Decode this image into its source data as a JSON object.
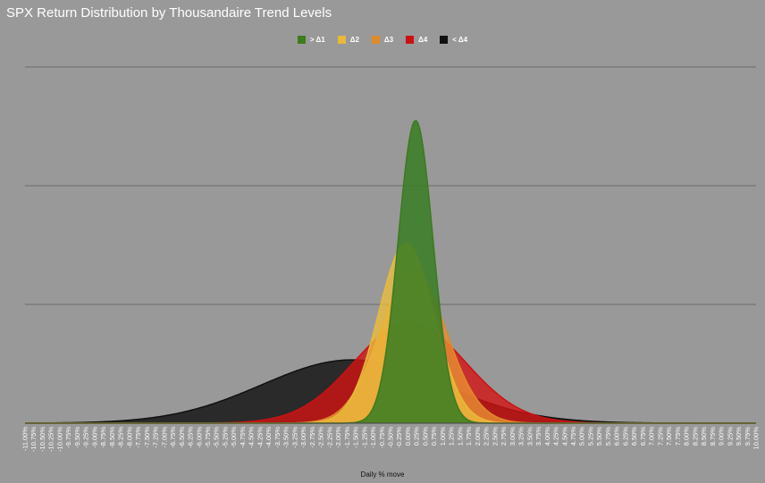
{
  "chart_data": {
    "type": "area",
    "title": "SPX Return Distribution by Thousandaire Trend Levels",
    "xlabel": "Daily % move",
    "ylabel": "",
    "legend_position": "top-center",
    "grid": true,
    "x_range": [
      -11.0,
      10.0
    ],
    "x_ticks": [
      "-11.00%",
      "-10.75%",
      "-10.50%",
      "-10.25%",
      "-10.00%",
      "-9.75%",
      "-9.50%",
      "-9.25%",
      "-9.00%",
      "-8.75%",
      "-8.50%",
      "-8.25%",
      "-8.00%",
      "-7.75%",
      "-7.50%",
      "-7.25%",
      "-7.00%",
      "-6.75%",
      "-6.50%",
      "-6.25%",
      "-6.00%",
      "-5.75%",
      "-5.50%",
      "-5.25%",
      "-5.00%",
      "-4.75%",
      "-4.50%",
      "-4.25%",
      "-4.00%",
      "-3.75%",
      "-3.50%",
      "-3.25%",
      "-3.00%",
      "-2.75%",
      "-2.50%",
      "-2.25%",
      "-2.00%",
      "-1.75%",
      "-1.50%",
      "-1.25%",
      "-1.00%",
      "-0.75%",
      "-0.50%",
      "-0.25%",
      "0.00%",
      "0.25%",
      "0.50%",
      "0.75%",
      "1.00%",
      "1.25%",
      "1.50%",
      "1.75%",
      "2.00%",
      "2.25%",
      "2.50%",
      "2.75%",
      "3.00%",
      "3.25%",
      "3.50%",
      "3.75%",
      "4.00%",
      "4.25%",
      "4.50%",
      "4.75%",
      "5.00%",
      "5.25%",
      "5.50%",
      "5.75%",
      "6.00%",
      "6.25%",
      "6.50%",
      "6.75%",
      "7.00%",
      "7.25%",
      "7.50%",
      "7.75%",
      "8.00%",
      "8.25%",
      "8.50%",
      "8.75%",
      "9.00%",
      "9.25%",
      "9.50%",
      "9.75%",
      "10.00%"
    ],
    "y_range": [
      0,
      0.9
    ],
    "gridlines": [
      0.3,
      0.6,
      0.9
    ],
    "series": [
      {
        "name": "< Δ4",
        "color": "#111111",
        "fill": "rgba(17,17,17,0.82)",
        "mean": -1.6,
        "sd": 2.6,
        "peak": 0.16
      },
      {
        "name": "Δ4",
        "color": "#cc1111",
        "fill": "rgba(210,20,20,0.80)",
        "mean": 0.05,
        "sd": 1.6,
        "peak": 0.255
      },
      {
        "name": "Δ3",
        "color": "#e08a2a",
        "fill": "rgba(230,140,50,0.82)",
        "mean": 0.15,
        "sd": 0.95,
        "peak": 0.385
      },
      {
        "name": "Δ2",
        "color": "#e8b93a",
        "fill": "rgba(235,190,60,0.78)",
        "mean": -0.05,
        "sd": 0.8,
        "peak": 0.455
      },
      {
        "name": "> Δ1",
        "color": "#3e7a1e",
        "fill": "rgba(55,125,35,0.85)",
        "mean": 0.22,
        "sd": 0.5,
        "peak": 0.765
      }
    ],
    "legend_order": [
      "> Δ1",
      "Δ2",
      "Δ3",
      "Δ4",
      "< Δ4"
    ]
  }
}
